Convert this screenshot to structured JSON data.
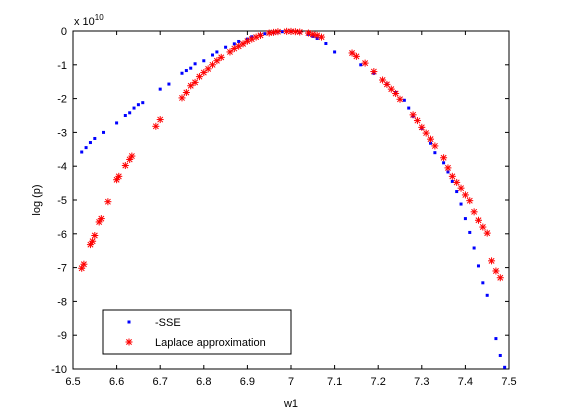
{
  "chart_data": {
    "type": "scatter",
    "xlabel": "w1",
    "ylabel": "log (p)",
    "multiplier_base": "x 10",
    "multiplier_exp": "10",
    "xlim": [
      6.5,
      7.5
    ],
    "ylim": [
      -10,
      0
    ],
    "xticks": [
      "6.5",
      "6.6",
      "6.7",
      "6.8",
      "6.9",
      "7",
      "7.1",
      "7.2",
      "7.3",
      "7.4",
      "7.5"
    ],
    "yticks": [
      "0",
      "-1",
      "-2",
      "-3",
      "-4",
      "-5",
      "-6",
      "-7",
      "-8",
      "-9",
      "-10"
    ],
    "legend_position": "bottom-left",
    "grid": false,
    "series": [
      {
        "name": "-SSE",
        "marker": "dot",
        "color": "#0000ff",
        "points": [
          [
            6.52,
            -3.58
          ],
          [
            6.53,
            -3.45
          ],
          [
            6.54,
            -3.3
          ],
          [
            6.55,
            -3.18
          ],
          [
            6.57,
            -3.0
          ],
          [
            6.6,
            -2.72
          ],
          [
            6.62,
            -2.5
          ],
          [
            6.63,
            -2.42
          ],
          [
            6.64,
            -2.28
          ],
          [
            6.65,
            -2.18
          ],
          [
            6.66,
            -2.12
          ],
          [
            6.7,
            -1.72
          ],
          [
            6.72,
            -1.57
          ],
          [
            6.75,
            -1.25
          ],
          [
            6.76,
            -1.17
          ],
          [
            6.77,
            -1.1
          ],
          [
            6.78,
            -0.97
          ],
          [
            6.8,
            -0.88
          ],
          [
            6.82,
            -0.71
          ],
          [
            6.83,
            -0.62
          ],
          [
            6.85,
            -0.48
          ],
          [
            6.87,
            -0.38
          ],
          [
            6.88,
            -0.31
          ],
          [
            6.9,
            -0.24
          ],
          [
            6.91,
            -0.17
          ],
          [
            6.93,
            -0.12
          ],
          [
            6.94,
            -0.08
          ],
          [
            6.96,
            -0.05
          ],
          [
            6.97,
            -0.03
          ],
          [
            6.98,
            -0.02
          ],
          [
            7.0,
            -0.01
          ],
          [
            7.02,
            -0.04
          ],
          [
            7.04,
            -0.1
          ],
          [
            7.05,
            -0.16
          ],
          [
            7.06,
            -0.22
          ],
          [
            7.08,
            -0.37
          ],
          [
            7.1,
            -0.62
          ],
          [
            7.14,
            -0.65
          ],
          [
            7.16,
            -1.0
          ],
          [
            7.19,
            -1.25
          ],
          [
            7.22,
            -1.57
          ],
          [
            7.24,
            -1.82
          ],
          [
            7.26,
            -2.05
          ],
          [
            7.27,
            -2.28
          ],
          [
            7.28,
            -2.52
          ],
          [
            7.3,
            -2.88
          ],
          [
            7.32,
            -3.32
          ],
          [
            7.33,
            -3.6
          ],
          [
            7.35,
            -3.9
          ],
          [
            7.36,
            -4.17
          ],
          [
            7.37,
            -4.45
          ],
          [
            7.38,
            -4.75
          ],
          [
            7.39,
            -5.12
          ],
          [
            7.4,
            -5.55
          ],
          [
            7.41,
            -5.96
          ],
          [
            7.42,
            -6.42
          ],
          [
            7.43,
            -6.95
          ],
          [
            7.44,
            -7.45
          ],
          [
            7.45,
            -7.82
          ],
          [
            7.47,
            -9.1
          ],
          [
            7.48,
            -9.6
          ],
          [
            7.49,
            -9.95
          ]
        ]
      },
      {
        "name": "Laplace approximation",
        "marker": "asterisk",
        "color": "#ff0000",
        "points": [
          [
            6.52,
            -7.02
          ],
          [
            6.525,
            -6.9
          ],
          [
            6.54,
            -6.32
          ],
          [
            6.545,
            -6.22
          ],
          [
            6.55,
            -6.05
          ],
          [
            6.56,
            -5.65
          ],
          [
            6.565,
            -5.55
          ],
          [
            6.58,
            -5.05
          ],
          [
            6.6,
            -4.4
          ],
          [
            6.605,
            -4.3
          ],
          [
            6.62,
            -3.98
          ],
          [
            6.63,
            -3.8
          ],
          [
            6.635,
            -3.7
          ],
          [
            6.69,
            -2.82
          ],
          [
            6.7,
            -2.62
          ],
          [
            6.75,
            -1.98
          ],
          [
            6.76,
            -1.82
          ],
          [
            6.77,
            -1.62
          ],
          [
            6.78,
            -1.52
          ],
          [
            6.79,
            -1.35
          ],
          [
            6.8,
            -1.23
          ],
          [
            6.81,
            -1.12
          ],
          [
            6.82,
            -1.0
          ],
          [
            6.83,
            -0.88
          ],
          [
            6.84,
            -0.78
          ],
          [
            6.86,
            -0.62
          ],
          [
            6.87,
            -0.52
          ],
          [
            6.88,
            -0.45
          ],
          [
            6.89,
            -0.38
          ],
          [
            6.9,
            -0.3
          ],
          [
            6.91,
            -0.24
          ],
          [
            6.92,
            -0.18
          ],
          [
            6.93,
            -0.13
          ],
          [
            6.95,
            -0.06
          ],
          [
            6.96,
            -0.04
          ],
          [
            6.97,
            -0.02
          ],
          [
            6.99,
            -0.01
          ],
          [
            7.0,
            -0.01
          ],
          [
            7.01,
            -0.02
          ],
          [
            7.02,
            -0.03
          ],
          [
            7.04,
            -0.06
          ],
          [
            7.05,
            -0.1
          ],
          [
            7.06,
            -0.13
          ],
          [
            7.07,
            -0.18
          ],
          [
            7.14,
            -0.65
          ],
          [
            7.15,
            -0.75
          ],
          [
            7.17,
            -0.95
          ],
          [
            7.19,
            -1.2
          ],
          [
            7.21,
            -1.45
          ],
          [
            7.22,
            -1.58
          ],
          [
            7.23,
            -1.72
          ],
          [
            7.24,
            -1.85
          ],
          [
            7.25,
            -2.02
          ],
          [
            7.28,
            -2.48
          ],
          [
            7.29,
            -2.65
          ],
          [
            7.3,
            -2.85
          ],
          [
            7.31,
            -3.02
          ],
          [
            7.32,
            -3.2
          ],
          [
            7.33,
            -3.4
          ],
          [
            7.35,
            -3.75
          ],
          [
            7.36,
            -4.05
          ],
          [
            7.37,
            -4.3
          ],
          [
            7.38,
            -4.48
          ],
          [
            7.39,
            -4.65
          ],
          [
            7.4,
            -4.85
          ],
          [
            7.41,
            -5.02
          ],
          [
            7.42,
            -5.35
          ],
          [
            7.43,
            -5.6
          ],
          [
            7.44,
            -5.8
          ],
          [
            7.45,
            -5.98
          ],
          [
            7.46,
            -6.8
          ],
          [
            7.47,
            -7.1
          ],
          [
            7.48,
            -7.3
          ]
        ]
      }
    ]
  }
}
